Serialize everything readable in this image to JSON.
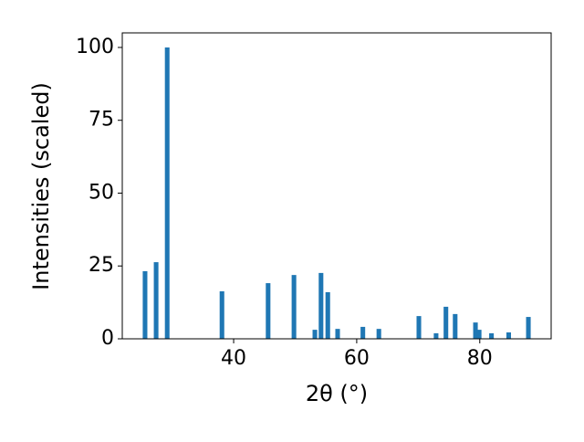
{
  "chart_data": {
    "type": "bar",
    "xlabel": "2θ (°)",
    "ylabel": "Intensities (scaled)",
    "x": [
      25.6,
      27.4,
      29.2,
      38.1,
      45.6,
      49.8,
      53.2,
      54.2,
      55.3,
      56.9,
      61.0,
      63.6,
      70.1,
      72.9,
      74.5,
      76.0,
      79.3,
      79.9,
      81.9,
      84.7,
      87.9
    ],
    "values": [
      23.2,
      26.3,
      100,
      16.3,
      19.1,
      21.9,
      3.1,
      22.6,
      16.0,
      3.4,
      4.1,
      3.4,
      7.8,
      1.9,
      11.0,
      8.5,
      5.6,
      3.1,
      1.9,
      2.2,
      7.5
    ],
    "color": "#1f77b4",
    "xlim": [
      21.9,
      91.6
    ],
    "xticks": [
      40,
      60,
      80
    ],
    "ylim": [
      0,
      105
    ],
    "yticks": [
      0,
      25,
      50,
      75,
      100
    ]
  }
}
